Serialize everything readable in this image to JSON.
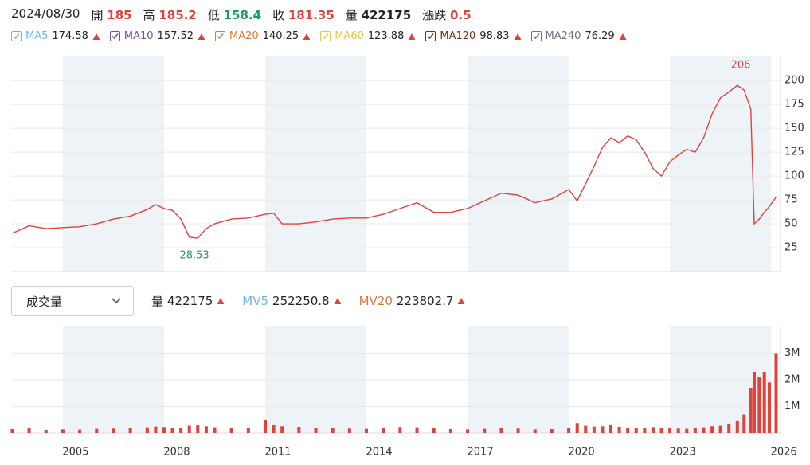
{
  "header": {
    "date": "2024/08/30",
    "quote": [
      {
        "label": "開",
        "value": 185,
        "color": "#e0413a"
      },
      {
        "label": "高",
        "value": 185.2,
        "color": "#e0413a"
      },
      {
        "label": "低",
        "value": 158.4,
        "color": "#1a9b5f"
      },
      {
        "label": "收",
        "value": 181.35,
        "color": "#e0413a"
      },
      {
        "label": "量",
        "value": 422175,
        "color": "#222222"
      },
      {
        "label": "漲跌",
        "value": 0.5,
        "color": "#e0413a"
      }
    ]
  },
  "indicators": [
    {
      "name": "MA5",
      "value": 174.58,
      "color": "#6fb3e6"
    },
    {
      "name": "MA10",
      "value": 157.52,
      "color": "#6a4fb0"
    },
    {
      "name": "MA20",
      "value": 140.25,
      "color": "#d9763a"
    },
    {
      "name": "MA60",
      "value": 123.88,
      "color": "#e8c34a"
    },
    {
      "name": "MA120",
      "value": 98.83,
      "color": "#7a2b14"
    },
    {
      "name": "MA240",
      "value": 76.29,
      "color": "#6b7280"
    }
  ],
  "volume_header": {
    "selector": "成交量",
    "items": [
      {
        "name": "量",
        "value": 422175,
        "color": "#222222"
      },
      {
        "name": "MV5",
        "value": 252250.8,
        "color": "#6fb3e6"
      },
      {
        "name": "MV20",
        "value": 223802.7,
        "color": "#d9763a"
      }
    ]
  },
  "chart_data": [
    {
      "type": "line",
      "color": "#e0413a",
      "xlim": [
        2003.49,
        2026.28
      ],
      "ylim": [
        0,
        226
      ],
      "yticks": [
        25,
        50,
        75,
        100,
        125,
        150,
        175,
        200
      ],
      "grid": true,
      "x": [
        2003.5,
        2004,
        2004.5,
        2005,
        2005.5,
        2006,
        2006.5,
        2007,
        2007.5,
        2007.75,
        2008,
        2008.25,
        2008.5,
        2008.75,
        2009,
        2009.25,
        2009.5,
        2010,
        2010.5,
        2011,
        2011.25,
        2011.5,
        2012,
        2012.5,
        2013,
        2013.5,
        2014,
        2014.5,
        2015,
        2015.5,
        2016,
        2016.5,
        2017,
        2017.5,
        2018,
        2018.5,
        2019,
        2019.5,
        2020,
        2020.25,
        2020.5,
        2020.75,
        2021,
        2021.25,
        2021.5,
        2021.75,
        2022,
        2022.25,
        2022.5,
        2022.75,
        2023,
        2023.25,
        2023.5,
        2023.75,
        2024,
        2024.25,
        2024.5,
        2024.75,
        2025,
        2025.2,
        2025.4,
        2025.5,
        2025.65,
        2025.8,
        2025.95,
        2026.15
      ],
      "values": [
        40,
        48,
        45,
        46,
        47,
        50,
        55,
        58,
        65,
        70,
        66,
        64,
        55,
        36,
        35,
        45,
        50,
        55,
        56,
        60,
        61,
        50,
        50,
        52,
        55,
        56,
        56,
        60,
        66,
        72,
        62,
        62,
        66,
        74,
        82,
        80,
        72,
        76,
        86,
        74,
        92,
        110,
        130,
        140,
        135,
        142,
        138,
        125,
        108,
        100,
        115,
        122,
        128,
        125,
        140,
        165,
        182,
        188,
        195,
        190,
        170,
        50,
        55,
        62,
        68,
        78
      ],
      "annotations": [
        {
          "x": 2025.1,
          "value": 206,
          "color": "#e0413a"
        },
        {
          "x": 2008.9,
          "value": 28.53,
          "color": "#1a9b5f"
        }
      ]
    },
    {
      "type": "bar",
      "color": "#e0413a",
      "xlim": [
        2003.49,
        2026.28
      ],
      "ylim": [
        0,
        4000000
      ],
      "yticks": [
        {
          "value": 1000000,
          "label": "1M"
        },
        {
          "value": 2000000,
          "label": "2M"
        },
        {
          "value": 3000000,
          "label": "3M"
        }
      ],
      "grid": true,
      "xticks": [
        2005,
        2008,
        2011,
        2014,
        2017,
        2020,
        2023,
        2026
      ],
      "x": [
        2003.5,
        2004,
        2004.5,
        2005,
        2005.5,
        2006,
        2006.5,
        2007,
        2007.5,
        2007.75,
        2008,
        2008.25,
        2008.5,
        2008.75,
        2009,
        2009.25,
        2009.5,
        2010,
        2010.5,
        2011,
        2011.25,
        2011.5,
        2012,
        2012.5,
        2013,
        2013.5,
        2014,
        2014.5,
        2015,
        2015.5,
        2016,
        2016.5,
        2017,
        2017.5,
        2018,
        2018.5,
        2019,
        2019.5,
        2020,
        2020.25,
        2020.5,
        2020.75,
        2021,
        2021.25,
        2021.5,
        2021.75,
        2022,
        2022.25,
        2022.5,
        2022.75,
        2023,
        2023.25,
        2023.5,
        2023.75,
        2024,
        2024.25,
        2024.5,
        2024.75,
        2025,
        2025.2,
        2025.4,
        2025.5,
        2025.65,
        2025.8,
        2025.95,
        2026.15
      ],
      "values": [
        150000,
        180000,
        120000,
        140000,
        130000,
        160000,
        170000,
        200000,
        220000,
        250000,
        230000,
        210000,
        200000,
        280000,
        300000,
        260000,
        220000,
        200000,
        210000,
        480000,
        300000,
        260000,
        240000,
        200000,
        180000,
        170000,
        160000,
        200000,
        230000,
        220000,
        180000,
        150000,
        140000,
        160000,
        180000,
        170000,
        140000,
        150000,
        200000,
        380000,
        280000,
        250000,
        260000,
        300000,
        240000,
        200000,
        190000,
        210000,
        230000,
        200000,
        180000,
        170000,
        160000,
        190000,
        220000,
        260000,
        280000,
        350000,
        450000,
        700000,
        1700000,
        2300000,
        2100000,
        2300000,
        1900000,
        3000000
      ]
    }
  ]
}
